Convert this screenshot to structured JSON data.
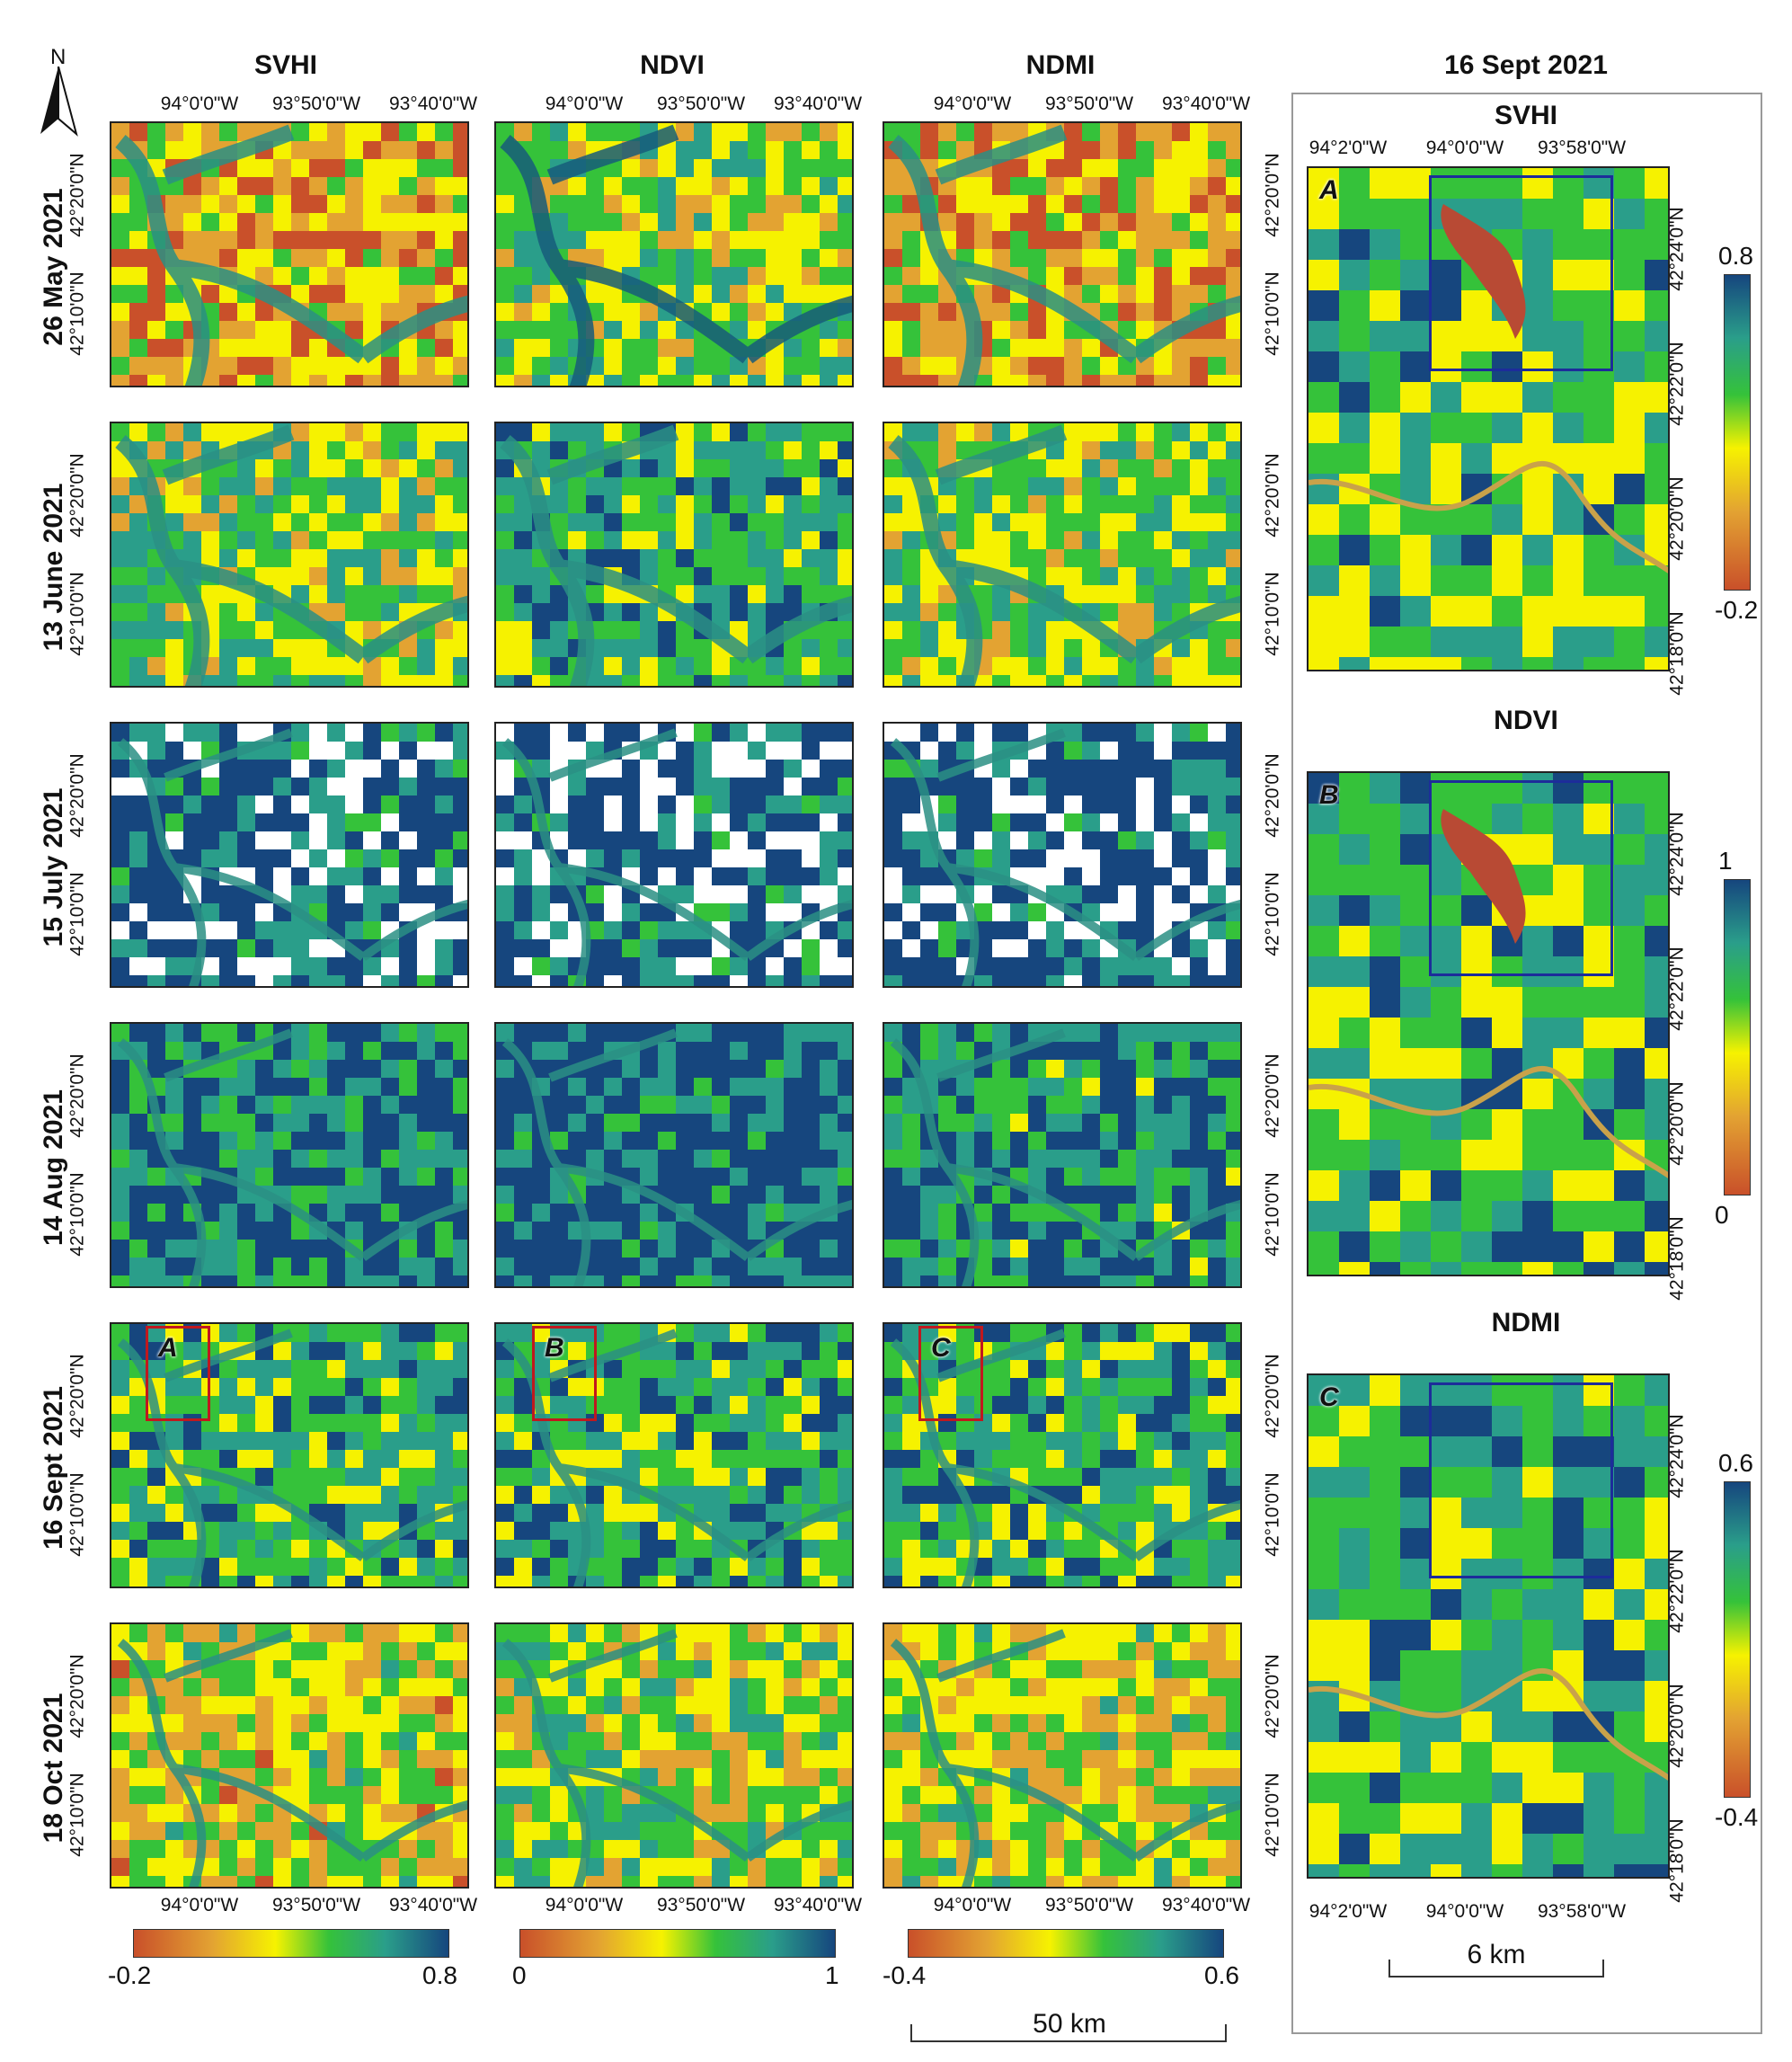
{
  "north_arrow": {
    "label": "N"
  },
  "columns": [
    {
      "title": "SVHI"
    },
    {
      "title": "NDVI"
    },
    {
      "title": "NDMI"
    }
  ],
  "rows": [
    {
      "date": "26 May 2021"
    },
    {
      "date": "13 June 2021"
    },
    {
      "date": "15 July 2021"
    },
    {
      "date": "14 Aug 2021"
    },
    {
      "date": "16 Sept 2021"
    },
    {
      "date": "18 Oct 2021"
    }
  ],
  "lon_ticks": [
    "94°0'0\"W",
    "93°50'0\"W",
    "93°40'0\"W"
  ],
  "lat_ticks": [
    "42°20'0\"N",
    "42°10'0\"N"
  ],
  "colorbars": [
    {
      "min": "-0.2",
      "max": "0.8"
    },
    {
      "min": "0",
      "max": "1"
    },
    {
      "min": "-0.4",
      "max": "0.6"
    }
  ],
  "scale_left": {
    "label": "50 km"
  },
  "insets": [
    "A",
    "B",
    "C"
  ],
  "right_panel": {
    "title": "16 Sept 2021",
    "lon_ticks": [
      "94°2'0\"W",
      "94°0'0\"W",
      "93°58'0\"W"
    ],
    "lat_ticks": [
      "42°24'0\"N",
      "42°22'0\"N",
      "42°20'0\"N",
      "42°18'0\"N"
    ],
    "maps": [
      {
        "title": "SVHI",
        "letter": "A",
        "max": "0.8",
        "min": "-0.2"
      },
      {
        "title": "NDVI",
        "letter": "B",
        "max": "1",
        "min": "0"
      },
      {
        "title": "NDMI",
        "letter": "C",
        "max": "0.6",
        "min": "-0.4"
      }
    ],
    "scale": {
      "label": "6 km"
    }
  },
  "colors": {
    "ramp": [
      "#c9502a",
      "#e3a332",
      "#f6f200",
      "#35c23a",
      "#2a9e8a",
      "#16467e"
    ],
    "inset_red": "#c0181e",
    "zoom_blue": "#1d2c9a"
  }
}
